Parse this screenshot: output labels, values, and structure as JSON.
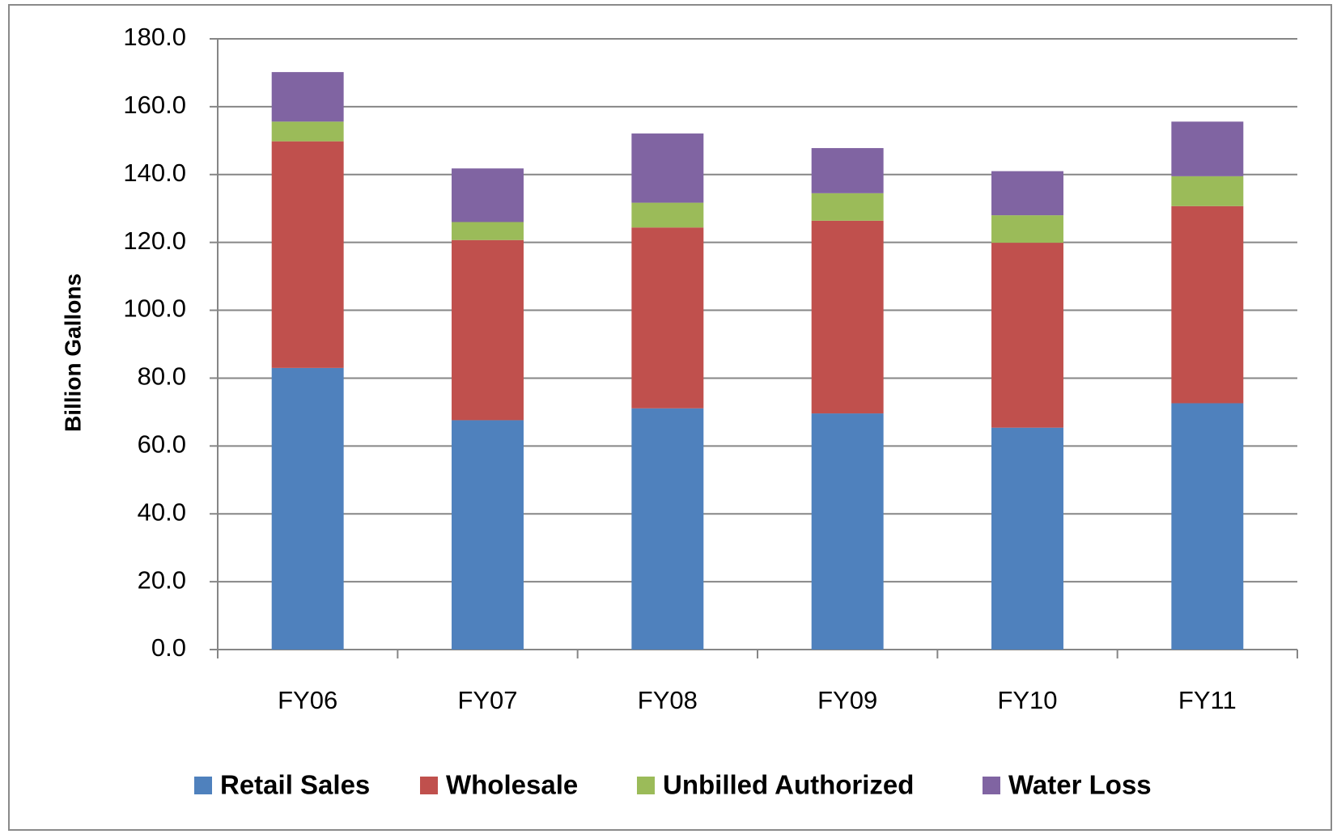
{
  "chart_data": {
    "type": "stacked-bar",
    "y_label": "Billion Gallons",
    "categories": [
      "FY06",
      "FY07",
      "FY08",
      "FY09",
      "FY10",
      "FY11"
    ],
    "series": [
      {
        "name": "Retail Sales",
        "color": "#4f81bd",
        "values": [
          83.0,
          67.6,
          71.1,
          69.6,
          65.4,
          72.6
        ]
      },
      {
        "name": "Wholesale",
        "color": "#c0504d",
        "values": [
          66.8,
          53.1,
          53.3,
          56.8,
          54.5,
          58.1
        ]
      },
      {
        "name": "Unbilled Authorized",
        "color": "#9bbb59",
        "values": [
          5.8,
          5.3,
          7.3,
          8.1,
          8.1,
          8.8
        ]
      },
      {
        "name": "Water Loss",
        "color": "#8064a2",
        "values": [
          14.6,
          15.8,
          20.4,
          13.3,
          13.0,
          16.1
        ]
      }
    ],
    "ylim": [
      0,
      180
    ],
    "yticks": [
      {
        "value": 0,
        "label": "0.0"
      },
      {
        "value": 20,
        "label": "20.0"
      },
      {
        "value": 40,
        "label": "40.0"
      },
      {
        "value": 60,
        "label": "60.0"
      },
      {
        "value": 80,
        "label": "80.0"
      },
      {
        "value": 100,
        "label": "100.0"
      },
      {
        "value": 120,
        "label": "120.0"
      },
      {
        "value": 140,
        "label": "140.0"
      },
      {
        "value": 160,
        "label": "160.0"
      },
      {
        "value": 180,
        "label": "180.0"
      }
    ],
    "grid": true,
    "legend": "bottom"
  }
}
